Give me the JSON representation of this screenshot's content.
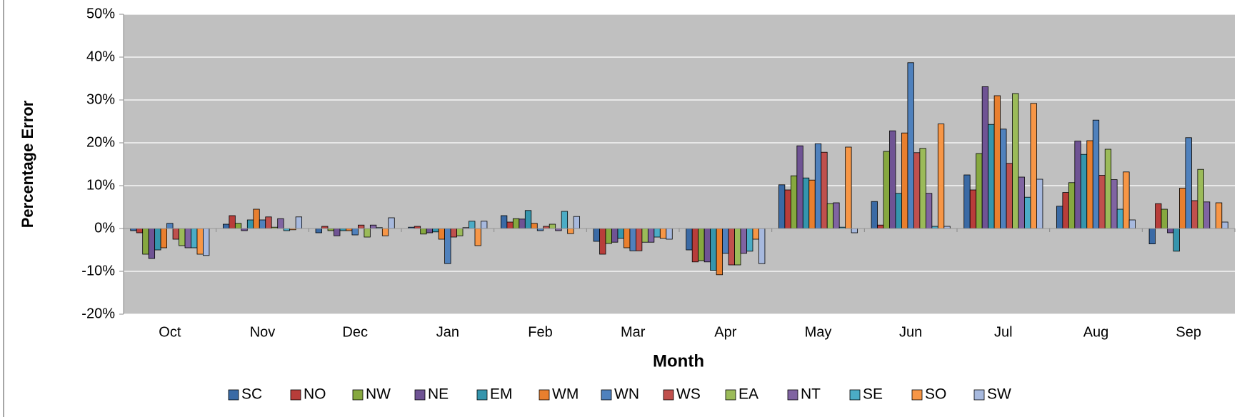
{
  "chart_data": {
    "type": "bar",
    "x_label": "Month",
    "y_label": "Percentage Error",
    "categories": [
      "Oct",
      "Nov",
      "Dec",
      "Jan",
      "Feb",
      "Mar",
      "Apr",
      "May",
      "Jun",
      "Jul",
      "Aug",
      "Sep"
    ],
    "series": [
      {
        "name": "SC",
        "color": "#3a6aa5",
        "values": [
          -0.5,
          1,
          -1,
          0.3,
          3,
          -3,
          -5,
          10.2,
          6.3,
          12.5,
          5.2,
          -3.6
        ]
      },
      {
        "name": "NO",
        "color": "#b83d3a",
        "values": [
          -1,
          3,
          0.5,
          0.5,
          1.5,
          -6,
          -7.8,
          9,
          0.8,
          9,
          8.4,
          5.8
        ]
      },
      {
        "name": "NW",
        "color": "#86a83f",
        "values": [
          -6,
          1.2,
          -0.5,
          -1.3,
          2.3,
          -3.5,
          -7.5,
          12.3,
          18,
          17.5,
          10.7,
          4.5
        ]
      },
      {
        "name": "NE",
        "color": "#6f5394",
        "values": [
          -7,
          -0.5,
          -1.7,
          -1,
          2.2,
          -3.2,
          -7.8,
          19.3,
          22.8,
          33.1,
          20.4,
          -1
        ]
      },
      {
        "name": "EM",
        "color": "#3595ad",
        "values": [
          -5,
          2,
          -0.5,
          -0.8,
          4.2,
          -2.3,
          -9.8,
          11.8,
          8.2,
          24.3,
          17.3,
          -5.3
        ]
      },
      {
        "name": "WM",
        "color": "#e97f2e",
        "values": [
          -4.5,
          4.5,
          -0.5,
          -2.5,
          1.2,
          -4.5,
          -10.8,
          11.3,
          22.3,
          31,
          20.5,
          9.4
        ]
      },
      {
        "name": "WN",
        "color": "#4f81bd",
        "values": [
          1.2,
          2,
          -1.5,
          -8.2,
          -0.5,
          -5.2,
          -5.8,
          19.8,
          38.7,
          23.2,
          25.3,
          21.2
        ]
      },
      {
        "name": "WS",
        "color": "#c0504d",
        "values": [
          -2.5,
          2.7,
          0.8,
          -2,
          0.5,
          -5.2,
          -8.5,
          17.8,
          17.7,
          15.2,
          12.4,
          6.5
        ]
      },
      {
        "name": "EA",
        "color": "#9bbb59",
        "values": [
          -4,
          0.3,
          -2,
          -1.7,
          1,
          -3.2,
          -8.5,
          5.8,
          18.7,
          31.5,
          18.5,
          13.8
        ]
      },
      {
        "name": "NT",
        "color": "#8064a2",
        "values": [
          -4.5,
          2.3,
          0.8,
          0.2,
          -0.5,
          -3.2,
          -5.8,
          6,
          8.2,
          12,
          11.4,
          6.2
        ]
      },
      {
        "name": "SE",
        "color": "#4bacc6",
        "values": [
          -4.5,
          -0.5,
          0.2,
          1.7,
          4,
          -2,
          -5.3,
          0.3,
          0.5,
          7.3,
          4.5,
          0
        ]
      },
      {
        "name": "SO",
        "color": "#f79646",
        "values": [
          -6,
          -0.3,
          -1.7,
          -4,
          -1.2,
          -2.3,
          -2.5,
          19,
          24.4,
          29.2,
          13.2,
          6
        ]
      },
      {
        "name": "SW",
        "color": "#a7b9de",
        "values": [
          -6.3,
          2.7,
          2.5,
          1.7,
          2.8,
          -2.5,
          -8.2,
          -1,
          0.5,
          11.5,
          2,
          1.5
        ]
      }
    ],
    "ylim": [
      -20,
      50
    ],
    "yticks": [
      {
        "value": -20,
        "label": "-20%"
      },
      {
        "value": -10,
        "label": "-10%"
      },
      {
        "value": 0,
        "label": "0%"
      },
      {
        "value": 10,
        "label": "10%"
      },
      {
        "value": 20,
        "label": "20%"
      },
      {
        "value": 30,
        "label": "30%"
      },
      {
        "value": 40,
        "label": "40%"
      },
      {
        "value": 50,
        "label": "50%"
      }
    ],
    "grid": true,
    "legend": "bottom"
  }
}
